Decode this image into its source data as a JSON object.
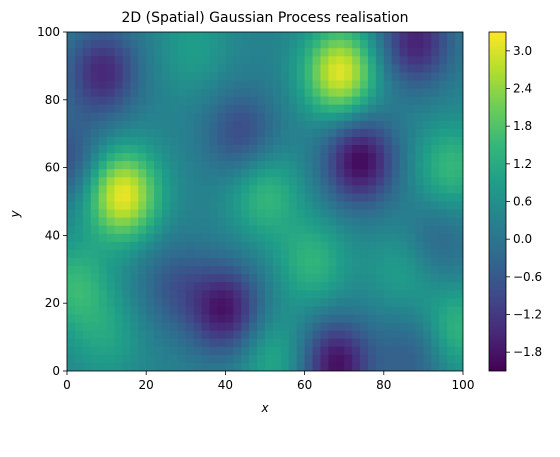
{
  "chart_data": {
    "type": "heatmap",
    "title": "2D (Spatial) Gaussian Process realisation",
    "xlabel": "x",
    "ylabel": "y",
    "xlim": [
      0,
      100
    ],
    "ylim": [
      0,
      100
    ],
    "x_ticks": [
      "0",
      "20",
      "40",
      "60",
      "80",
      "100"
    ],
    "y_ticks": [
      "0",
      "20",
      "40",
      "60",
      "80",
      "100"
    ],
    "x_tick_values": [
      0,
      20,
      40,
      60,
      80,
      100
    ],
    "y_tick_values": [
      0,
      20,
      40,
      60,
      80,
      100
    ],
    "colormap": "viridis",
    "colorbar": {
      "range": [
        -2.1,
        3.3
      ],
      "ticks": [
        3.0,
        2.4,
        1.8,
        1.2,
        0.6,
        0.0,
        -0.6,
        -1.2,
        -1.8
      ],
      "tick_labels": [
        "3.0",
        "2.4",
        "1.8",
        "1.2",
        "0.6",
        "0.0",
        "−0.6",
        "−1.2",
        "−1.8"
      ]
    },
    "grid": false,
    "field_baseline": 0.3,
    "features": [
      {
        "x": 14,
        "y": 52,
        "value": 3.2
      },
      {
        "x": 69,
        "y": 88,
        "value": 3.1
      },
      {
        "x": 74,
        "y": 62,
        "value": -2.0
      },
      {
        "x": 88,
        "y": 97,
        "value": -1.6
      },
      {
        "x": 9,
        "y": 88,
        "value": -1.5
      },
      {
        "x": 68,
        "y": 2,
        "value": -1.9
      },
      {
        "x": 40,
        "y": 18,
        "value": -1.8
      },
      {
        "x": 50,
        "y": 52,
        "value": 1.5
      },
      {
        "x": 97,
        "y": 60,
        "value": 1.5
      },
      {
        "x": 85,
        "y": 30,
        "value": 1.0
      },
      {
        "x": 2,
        "y": 25,
        "value": 1.5
      },
      {
        "x": 62,
        "y": 32,
        "value": 1.4
      },
      {
        "x": 44,
        "y": 70,
        "value": -0.9
      },
      {
        "x": 27,
        "y": 25,
        "value": -0.6
      },
      {
        "x": 10,
        "y": 10,
        "value": 1.0
      },
      {
        "x": 52,
        "y": 4,
        "value": 1.2
      },
      {
        "x": 98,
        "y": 12,
        "value": 1.5
      },
      {
        "x": 32,
        "y": 95,
        "value": 0.9
      },
      {
        "x": 93,
        "y": 38,
        "value": -0.4
      },
      {
        "x": 0,
        "y": 62,
        "value": -0.8
      },
      {
        "x": 88,
        "y": 5,
        "value": -0.6
      }
    ]
  }
}
